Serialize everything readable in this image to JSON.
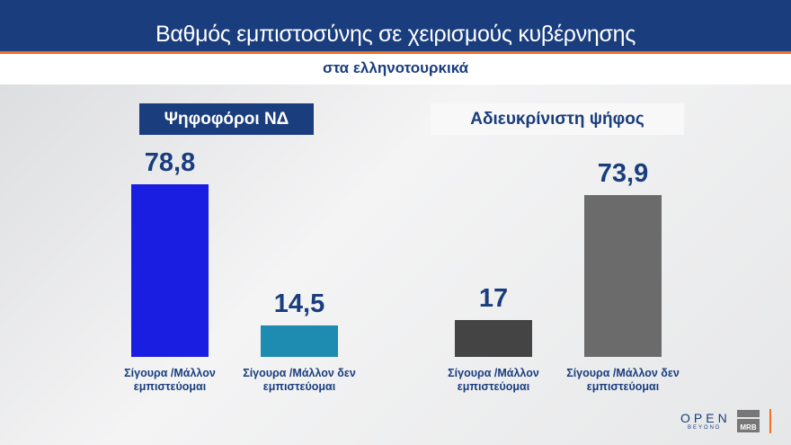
{
  "header": {
    "title": "Βαθμός εμπιστοσύνης σε χειρισμούς κυβέρνησης",
    "subtitle": "στα ελληνοτουρκικά"
  },
  "chart_data": [
    {
      "type": "bar",
      "title": "Ψηφοφόροι ΝΔ",
      "categories": [
        "Σίγουρα /Μάλλον εμπιστεύομαι",
        "Σίγουρα /Μάλλον δεν εμπιστεύομαι"
      ],
      "values": [
        78.8,
        14.5
      ],
      "labels": [
        "78,8",
        "14,5"
      ],
      "colors": [
        "#1a1ee0",
        "#1e8bb0"
      ],
      "ylim": [
        0,
        100
      ],
      "grid": false
    },
    {
      "type": "bar",
      "title": "Αδιευκρίνιστη ψήφος",
      "categories": [
        "Σίγουρα /Μάλλον εμπιστεύομαι",
        "Σίγουρα /Μάλλον δεν εμπιστεύομαι"
      ],
      "values": [
        17,
        73.9
      ],
      "labels": [
        "17",
        "73,9"
      ],
      "colors": [
        "#444444",
        "#6b6b6b"
      ],
      "ylim": [
        0,
        100
      ],
      "grid": false
    }
  ],
  "logos": {
    "open": "OPEN",
    "open_sub": "BEYOND",
    "mrb": "MRB"
  },
  "colors": {
    "brand": "#1a3d7e",
    "accent": "#f36f21"
  }
}
